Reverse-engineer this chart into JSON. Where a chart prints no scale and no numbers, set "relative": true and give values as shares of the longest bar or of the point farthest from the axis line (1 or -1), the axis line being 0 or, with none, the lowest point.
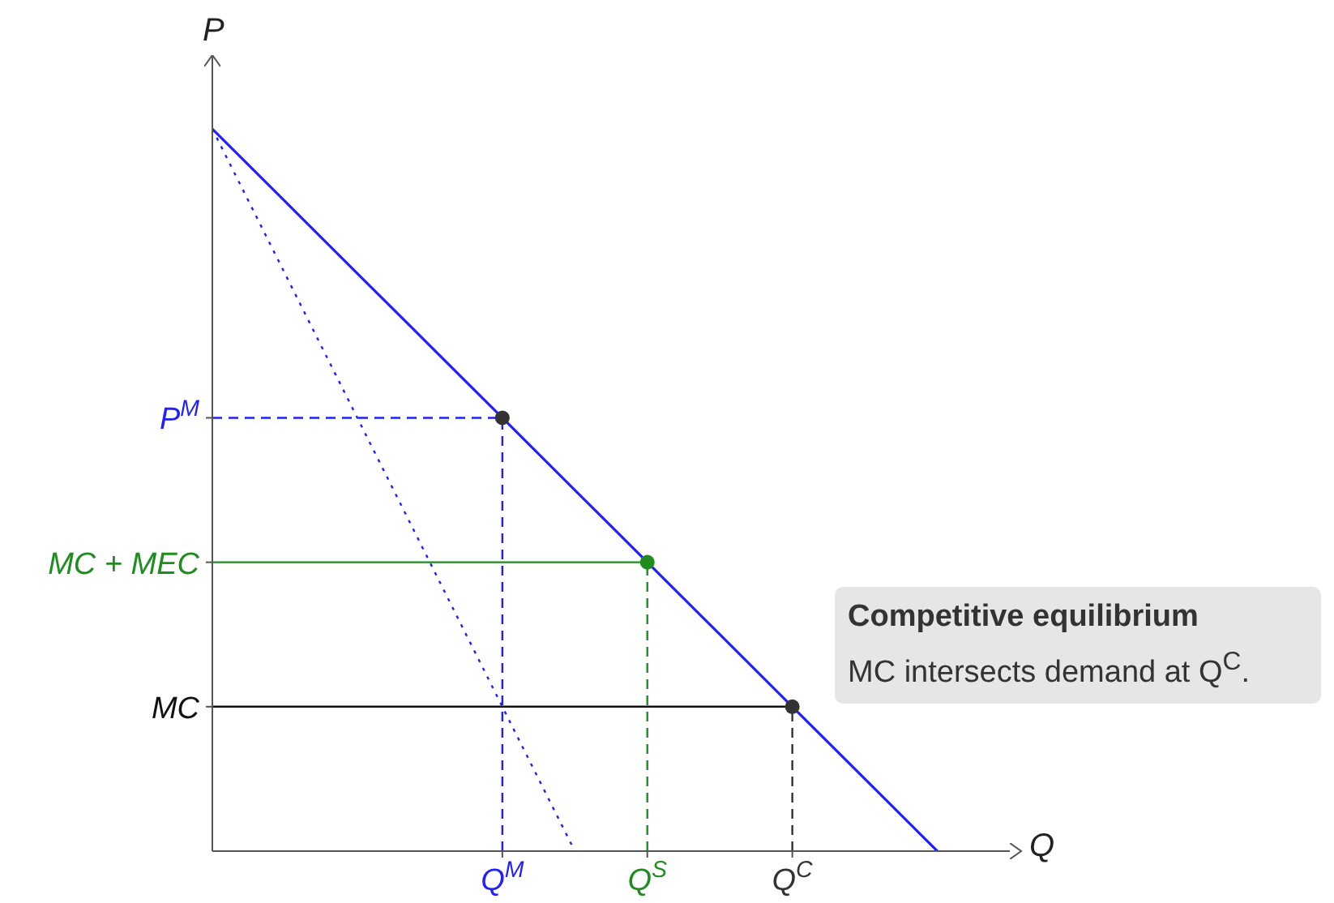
{
  "chart_data": {
    "type": "line",
    "relative": true,
    "xlabel": "Q",
    "ylabel": "P",
    "categories": [
      null,
      null,
      null,
      null,
      "Q$^{M}$",
      null,
      "Q$^{S}$",
      null,
      "Q$^{C}$",
      null,
      null
    ],
    "series": [
      {
        "values": [
          1,
          0.9,
          0.8,
          0.7,
          0.6,
          0.5,
          0.4,
          0.3,
          0.2,
          0.1,
          0
        ],
        "color": "#1f1fff",
        "line_style": "solid"
      },
      {
        "values": [
          1,
          0.8,
          0.6,
          0.4,
          0.2,
          0,
          null,
          null,
          null,
          null,
          null
        ],
        "color": "#1f1fff",
        "line_style": "dotted"
      },
      {
        "name": "P$^{M}$",
        "values": [
          0.6,
          0.6,
          0.6,
          0.6,
          0.6,
          null,
          null,
          null,
          null,
          null,
          null
        ],
        "color": "#1f1fff",
        "line_style": "dashed"
      },
      {
        "x": [
          "Q$^{M}$",
          "Q$^{M}$"
        ],
        "values": [
          0,
          0.6
        ],
        "color": "#1f1fff",
        "line_style": "dashed"
      },
      {
        "name": "MC + MEC",
        "values": [
          0.4,
          0.4,
          0.4,
          0.4,
          0.4,
          0.4,
          0.4,
          null,
          null,
          null,
          null
        ],
        "color": "#1e8c1e",
        "line_style": "solid"
      },
      {
        "x": [
          "Q$^{S}$",
          "Q$^{S}$"
        ],
        "values": [
          0,
          0.4
        ],
        "color": "#1e8c1e",
        "line_style": "dashed"
      },
      {
        "name": "MC",
        "values": [
          0.2,
          0.2,
          0.2,
          0.2,
          0.2,
          0.2,
          0.2,
          0.2,
          0.2,
          null,
          null
        ],
        "color": "#111111",
        "line_style": "solid"
      },
      {
        "x": [
          "Q$^{C}$",
          "Q$^{C}$"
        ],
        "values": [
          0,
          0.2
        ],
        "color": "#333333",
        "line_style": "dashed"
      },
      {
        "type": "scatter",
        "x": [
          "Q$^{M}$",
          "Q$^{S}$",
          "Q$^{C}$"
        ],
        "values": [
          0.6,
          0.4,
          0.2
        ],
        "colors": [
          "#333333",
          "#1e8c1e",
          "#333333"
        ],
        "marker": "circle"
      }
    ],
    "annotations": [
      "Competitive equilibrium",
      "MC intersects demand at Q$^{C}$."
    ]
  }
}
